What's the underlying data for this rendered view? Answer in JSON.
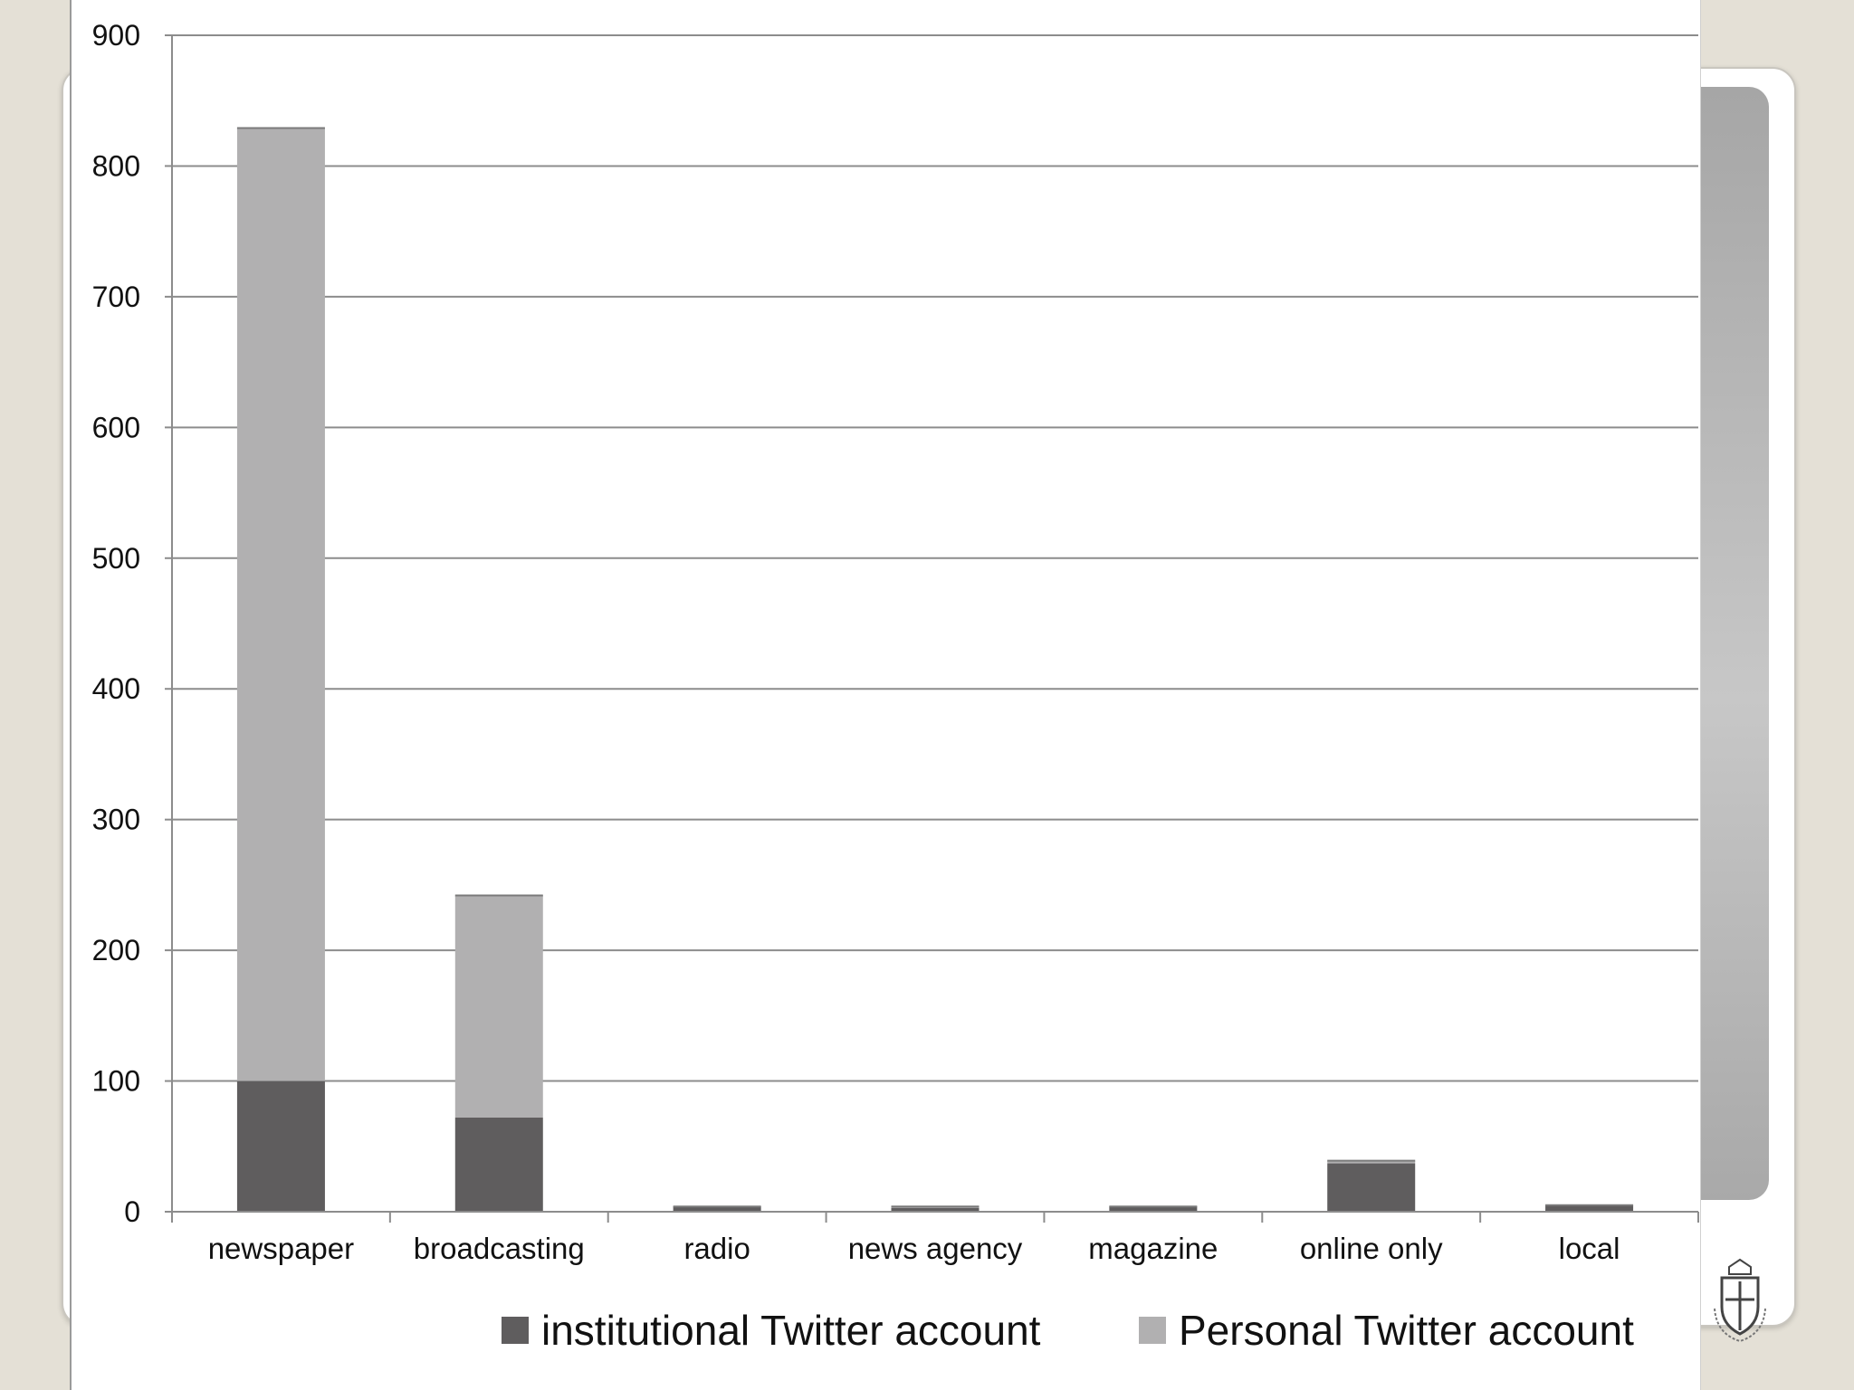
{
  "chart_data": {
    "type": "bar",
    "stacked": true,
    "categories": [
      "newspaper",
      "broadcasting",
      "radio",
      "news agency",
      "magazine",
      "online only",
      "local"
    ],
    "series": [
      {
        "name": "institutional Twitter account",
        "color": "#5f5d5e",
        "values": [
          100,
          72,
          4,
          3,
          4,
          37,
          5
        ]
      },
      {
        "name": "Personal Twitter account",
        "color": "#b1b0b1",
        "values": [
          729,
          170,
          0,
          1,
          0,
          2,
          0
        ]
      }
    ],
    "ylim": [
      0,
      900
    ],
    "yticks": [
      0,
      100,
      200,
      300,
      400,
      500,
      600,
      700,
      800,
      900
    ],
    "grid": true,
    "legend_position": "bottom",
    "title": "",
    "xlabel": "",
    "ylabel": ""
  },
  "legend": {
    "institutional_label": "institutional Twitter account",
    "personal_label": "Personal Twitter account"
  },
  "logo": {
    "motto": "IN DEI NOMINE FELICITER"
  }
}
